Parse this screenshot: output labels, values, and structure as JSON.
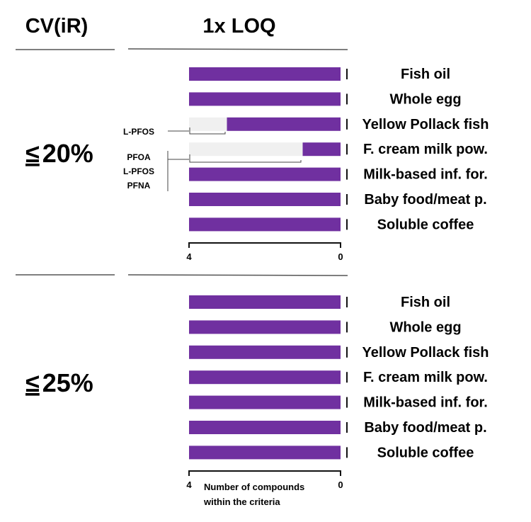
{
  "header": {
    "left_title": "CV(iR)",
    "right_title": "1x LOQ"
  },
  "colors": {
    "bar": "#7030a0",
    "missing": "#f0f0f0",
    "axis": "#111111",
    "rule": "#555555"
  },
  "chart_data": [
    {
      "type": "bar",
      "orientation": "horizontal",
      "title": "≤ 20%",
      "title_prefix": "≤",
      "title_value": "20%",
      "categories": [
        "Fish oil",
        "Whole egg",
        "Yellow Pollack fish",
        "F. cream milk pow.",
        "Milk-based inf. for.",
        "Baby food/meat p.",
        "Soluble coffee"
      ],
      "values": [
        4,
        4,
        3,
        1,
        4,
        4,
        4
      ],
      "xlim": [
        4,
        0
      ],
      "x_ticks": [
        "4",
        "0"
      ],
      "annotations": [
        {
          "category": "Yellow Pollack fish",
          "lines": [
            "L-PFOS"
          ]
        },
        {
          "category": "F. cream milk pow.",
          "lines": [
            "PFOA",
            "L-PFOS",
            "PFNA"
          ]
        }
      ],
      "xlabel": ""
    },
    {
      "type": "bar",
      "orientation": "horizontal",
      "title": "≤ 25%",
      "title_prefix": "≤",
      "title_value": "25%",
      "categories": [
        "Fish oil",
        "Whole egg",
        "Yellow Pollack fish",
        "F. cream milk pow.",
        "Milk-based inf. for.",
        "Baby food/meat p.",
        "Soluble coffee"
      ],
      "values": [
        4,
        4,
        4,
        4,
        4,
        4,
        4
      ],
      "xlim": [
        4,
        0
      ],
      "x_ticks": [
        "4",
        "0"
      ],
      "annotations": [],
      "xlabel": "Number of compounds within the criteria",
      "xlabel_lines": [
        "Number of compounds",
        "within the criteria"
      ]
    }
  ]
}
